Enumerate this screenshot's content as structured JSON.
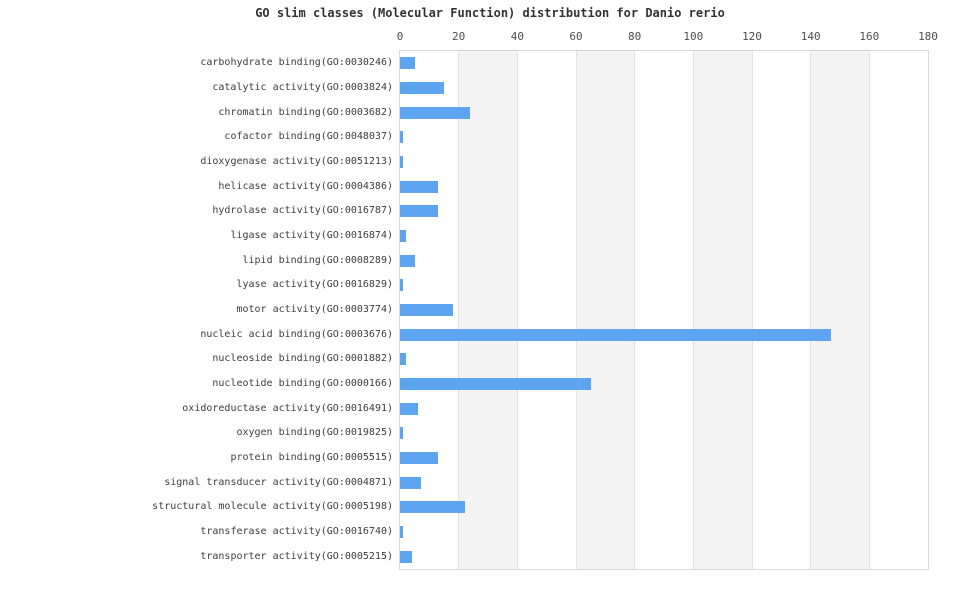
{
  "chart_data": {
    "type": "bar",
    "orientation": "horizontal",
    "title": "GO slim classes (Molecular Function) distribution for Danio rerio",
    "categories": [
      "carbohydrate binding(GO:0030246)",
      "catalytic activity(GO:0003824)",
      "chromatin binding(GO:0003682)",
      "cofactor binding(GO:0048037)",
      "dioxygenase activity(GO:0051213)",
      "helicase activity(GO:0004386)",
      "hydrolase activity(GO:0016787)",
      "ligase activity(GO:0016874)",
      "lipid binding(GO:0008289)",
      "lyase activity(GO:0016829)",
      "motor activity(GO:0003774)",
      "nucleic acid binding(GO:0003676)",
      "nucleoside binding(GO:0001882)",
      "nucleotide binding(GO:0000166)",
      "oxidoreductase activity(GO:0016491)",
      "oxygen binding(GO:0019825)",
      "protein binding(GO:0005515)",
      "signal transducer activity(GO:0004871)",
      "structural molecule activity(GO:0005198)",
      "transferase activity(GO:0016740)",
      "transporter activity(GO:0005215)"
    ],
    "values": [
      5,
      15,
      24,
      1,
      1,
      13,
      13,
      2,
      5,
      1,
      18,
      147,
      2,
      65,
      6,
      1,
      13,
      7,
      22,
      1,
      4
    ],
    "xlabel": "",
    "ylabel": "",
    "xlim": [
      0,
      180
    ],
    "xticks": [
      0,
      20,
      40,
      60,
      80,
      100,
      120,
      140,
      160,
      180
    ],
    "tick_position": "top",
    "legend": "none",
    "grid": "vertical gridlines every 20 units with alternating shaded bands",
    "shaded_band_starts": [
      20,
      60,
      100,
      140
    ],
    "colors": {
      "bar": "#5da4f1",
      "band": "#f4f4f4",
      "gridline": "#e3e3e3",
      "spine": "#d8d8d8",
      "title_text": "#333333",
      "category_text": "#3d3d3d",
      "tick_text": "#4d4d4d",
      "background": "#ffffff"
    }
  }
}
